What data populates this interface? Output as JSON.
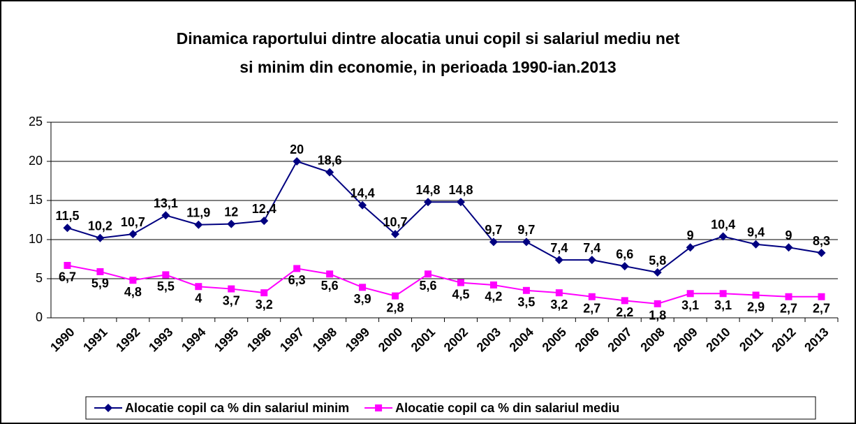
{
  "chart_data": {
    "type": "line",
    "title": [
      "Dinamica raportului dintre alocatia unui copil si salariul mediu net",
      "si minim din economie, in perioada 1990-ian.2013"
    ],
    "categories": [
      "1990",
      "1991",
      "1992",
      "1993",
      "1994",
      "1995",
      "1996",
      "1997",
      "1998",
      "1999",
      "2000",
      "2001",
      "2002",
      "2003",
      "2004",
      "2005",
      "2006",
      "2007",
      "2008",
      "2009",
      "2010",
      "2011",
      "2012",
      "2013"
    ],
    "series": [
      {
        "name": "Alocatie copil ca % din salariul minim",
        "color": "#000080",
        "marker": "diamond",
        "values": [
          11.5,
          10.2,
          10.7,
          13.1,
          11.9,
          12,
          12.4,
          20,
          18.6,
          14.4,
          10.7,
          14.8,
          14.8,
          9.7,
          9.7,
          7.4,
          7.4,
          6.6,
          5.8,
          9,
          10.4,
          9.4,
          9,
          8.3
        ],
        "value_labels": [
          "11,5",
          "10,2",
          "10,7",
          "13,1",
          "11,9",
          "12",
          "12,4",
          "20",
          "18,6",
          "14,4",
          "10,7",
          "14,8",
          "14,8",
          "9,7",
          "9,7",
          "7,4",
          "7,4",
          "6,6",
          "5,8",
          "9",
          "10,4",
          "9,4",
          "9",
          "8,3"
        ]
      },
      {
        "name": "Alocatie copil ca % din salariul mediu",
        "color": "#FF00FF",
        "marker": "square",
        "values": [
          6.7,
          5.9,
          4.8,
          5.5,
          4,
          3.7,
          3.2,
          6.3,
          5.6,
          3.9,
          2.8,
          5.6,
          4.5,
          4.2,
          3.5,
          3.2,
          2.7,
          2.2,
          1.8,
          3.1,
          3.1,
          2.9,
          2.7,
          2.7
        ],
        "value_labels": [
          "6,7",
          "5,9",
          "4,8",
          "5,5",
          "4",
          "3,7",
          "3,2",
          "6,3",
          "5,6",
          "3,9",
          "2,8",
          "5,6",
          "4,5",
          "4,2",
          "3,5",
          "3,2",
          "2,7",
          "2,2",
          "1,8",
          "3,1",
          "3,1",
          "2,9",
          "2,7",
          "2,7"
        ]
      }
    ],
    "ylim": [
      0,
      25
    ],
    "yticks": [
      0,
      5,
      10,
      15,
      20,
      25
    ],
    "grid": true,
    "legend": "bottom"
  }
}
